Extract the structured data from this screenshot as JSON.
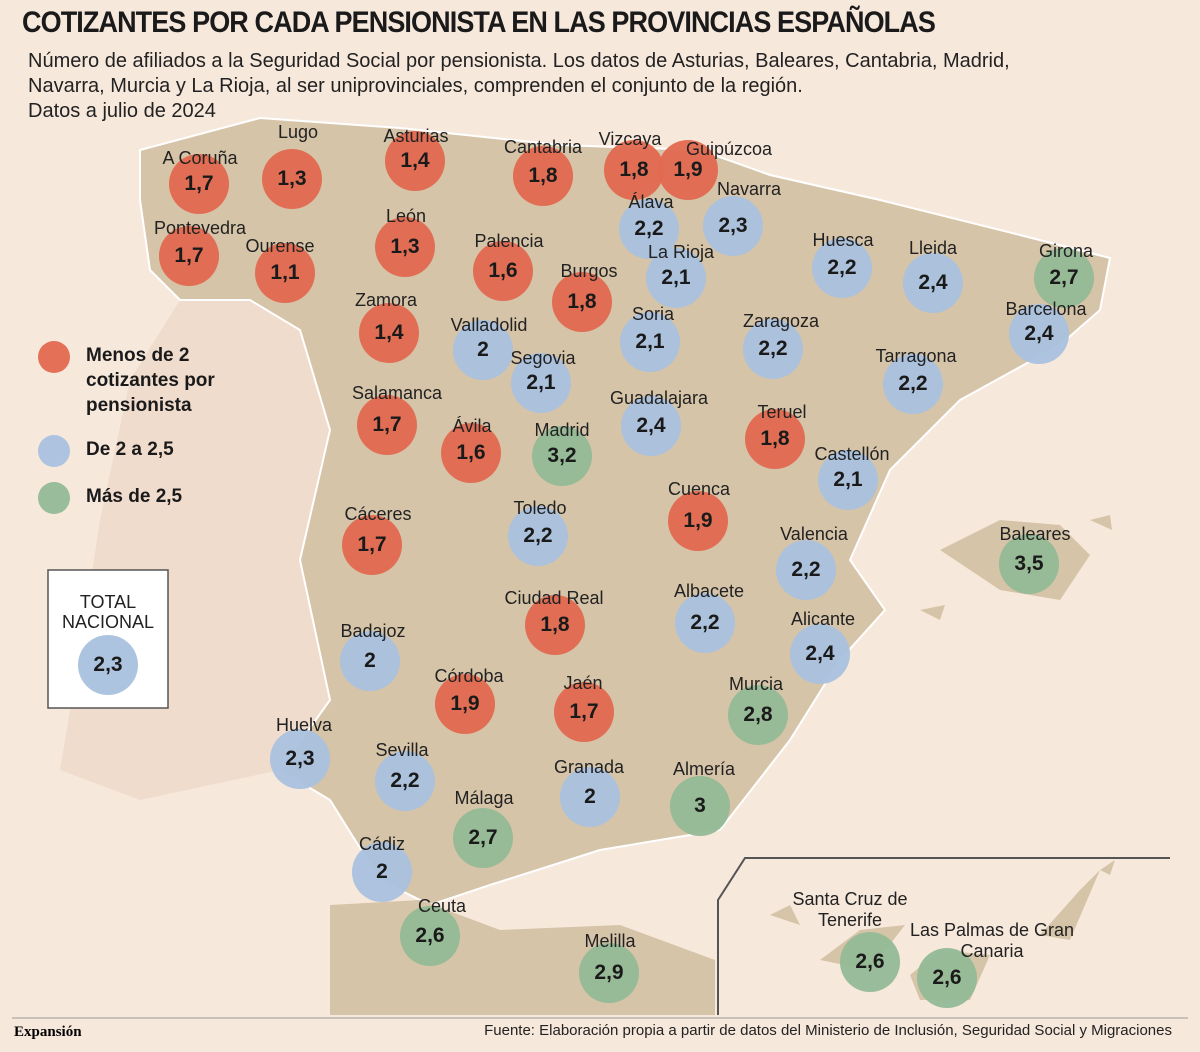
{
  "header": {
    "title": "COTIZANTES POR CADA PENSIONISTA EN LAS PROVINCIAS ESPAÑOLAS",
    "subtitle": [
      "Número de afiliados a la Seguridad Social por pensionista. Los datos de Asturias, Baleares, Cantabria, Madrid,",
      "Navarra, Murcia y La Rioja, al ser uniprovinciales, comprenden el conjunto de la región.",
      "Datos a julio de 2024"
    ]
  },
  "legend": [
    {
      "label": "Menos de 2 cotizantes por pensionista",
      "color": "#e2694f"
    },
    {
      "label": "De 2 a 2,5",
      "color": "#a9c1de"
    },
    {
      "label": "Más de 2,5",
      "color": "#93b996"
    }
  ],
  "total": {
    "label": "TOTAL NACIONAL",
    "value": 2.3,
    "value_label": "2,3",
    "color": "#a9c1de"
  },
  "provinces": [
    {
      "name": "A Coruña",
      "value": 1.7,
      "value_label": "1,7",
      "color": "#e2694f"
    },
    {
      "name": "Lugo",
      "value": 1.3,
      "value_label": "1,3",
      "color": "#e2694f"
    },
    {
      "name": "Asturias",
      "value": 1.4,
      "value_label": "1,4",
      "color": "#e2694f"
    },
    {
      "name": "Cantabria",
      "value": 1.8,
      "value_label": "1,8",
      "color": "#e2694f"
    },
    {
      "name": "Vizcaya",
      "value": 1.8,
      "value_label": "1,8",
      "color": "#e2694f"
    },
    {
      "name": "Guipúzcoa",
      "value": 1.9,
      "value_label": "1,9",
      "color": "#e2694f"
    },
    {
      "name": "Navarra",
      "value": 2.3,
      "value_label": "2,3",
      "color": "#a9c1de"
    },
    {
      "name": "Álava",
      "value": 2.2,
      "value_label": "2,2",
      "color": "#a9c1de"
    },
    {
      "name": "Pontevedra",
      "value": 1.7,
      "value_label": "1,7",
      "color": "#e2694f"
    },
    {
      "name": "Ourense",
      "value": 1.1,
      "value_label": "1,1",
      "color": "#e2694f"
    },
    {
      "name": "León",
      "value": 1.3,
      "value_label": "1,3",
      "color": "#e2694f"
    },
    {
      "name": "Palencia",
      "value": 1.6,
      "value_label": "1,6",
      "color": "#e2694f"
    },
    {
      "name": "La Rioja",
      "value": 2.1,
      "value_label": "2,1",
      "color": "#a9c1de"
    },
    {
      "name": "Burgos",
      "value": 1.8,
      "value_label": "1,8",
      "color": "#e2694f"
    },
    {
      "name": "Huesca",
      "value": 2.2,
      "value_label": "2,2",
      "color": "#a9c1de"
    },
    {
      "name": "Lleida",
      "value": 2.4,
      "value_label": "2,4",
      "color": "#a9c1de"
    },
    {
      "name": "Girona",
      "value": 2.7,
      "value_label": "2,7",
      "color": "#93b996"
    },
    {
      "name": "Zamora",
      "value": 1.4,
      "value_label": "1,4",
      "color": "#e2694f"
    },
    {
      "name": "Valladolid",
      "value": 2,
      "color": "#a9c1de"
    },
    {
      "name": "Soria",
      "value": 2.1,
      "value_label": "2,1",
      "color": "#a9c1de"
    },
    {
      "name": "Zaragoza",
      "value": 2.2,
      "value_label": "2,2",
      "color": "#a9c1de"
    },
    {
      "name": "Barcelona",
      "value": 2.4,
      "value_label": "2,4",
      "color": "#a9c1de"
    },
    {
      "name": "Segovia",
      "value": 2.1,
      "value_label": "2,1",
      "color": "#a9c1de"
    },
    {
      "name": "Tarragona",
      "value": 2.2,
      "value_label": "2,2",
      "color": "#a9c1de"
    },
    {
      "name": "Salamanca",
      "value": 1.7,
      "value_label": "1,7",
      "color": "#e2694f"
    },
    {
      "name": "Ávila",
      "value": 1.6,
      "value_label": "1,6",
      "color": "#e2694f"
    },
    {
      "name": "Madrid",
      "value": 3.2,
      "value_label": "3,2",
      "color": "#93b996"
    },
    {
      "name": "Guadalajara",
      "value": 2.4,
      "value_label": "2,4",
      "color": "#a9c1de"
    },
    {
      "name": "Teruel",
      "value": 1.8,
      "value_label": "1,8",
      "color": "#e2694f"
    },
    {
      "name": "Castellón",
      "value": 2.1,
      "value_label": "2,1",
      "color": "#a9c1de"
    },
    {
      "name": "Cuenca",
      "value": 1.9,
      "value_label": "1,9",
      "color": "#e2694f"
    },
    {
      "name": "Cáceres",
      "value": 1.7,
      "value_label": "1,7",
      "color": "#e2694f"
    },
    {
      "name": "Toledo",
      "value": 2.2,
      "value_label": "2,2",
      "color": "#a9c1de"
    },
    {
      "name": "Valencia",
      "value": 2.2,
      "value_label": "2,2",
      "color": "#a9c1de"
    },
    {
      "name": "Baleares",
      "value": 3.5,
      "value_label": "3,5",
      "color": "#93b996"
    },
    {
      "name": "Ciudad Real",
      "value": 1.8,
      "value_label": "1,8",
      "color": "#e2694f"
    },
    {
      "name": "Albacete",
      "value": 2.2,
      "value_label": "2,2",
      "color": "#a9c1de"
    },
    {
      "name": "Badajoz",
      "value": 2,
      "color": "#a9c1de"
    },
    {
      "name": "Alicante",
      "value": 2.4,
      "value_label": "2,4",
      "color": "#a9c1de"
    },
    {
      "name": "Córdoba",
      "value": 1.9,
      "value_label": "1,9",
      "color": "#e2694f"
    },
    {
      "name": "Jaén",
      "value": 1.7,
      "value_label": "1,7",
      "color": "#e2694f"
    },
    {
      "name": "Murcia",
      "value": 2.8,
      "value_label": "2,8",
      "color": "#93b996"
    },
    {
      "name": "Huelva",
      "value": 2.3,
      "value_label": "2,3",
      "color": "#a9c1de"
    },
    {
      "name": "Sevilla",
      "value": 2.2,
      "value_label": "2,2",
      "color": "#a9c1de"
    },
    {
      "name": "Granada",
      "value": 2,
      "color": "#a9c1de"
    },
    {
      "name": "Almería",
      "value": 3,
      "color": "#93b996"
    },
    {
      "name": "Málaga",
      "value": 2.7,
      "value_label": "2,7",
      "color": "#93b996"
    },
    {
      "name": "Cádiz",
      "value": 2,
      "color": "#a9c1de"
    },
    {
      "name": "Ceuta",
      "value": 2.6,
      "value_label": "2,6",
      "color": "#93b996"
    },
    {
      "name": "Melilla",
      "value": 2.9,
      "value_label": "2,9",
      "color": "#93b996"
    },
    {
      "name": "Santa Cruz de Tenerife",
      "value": 2.6,
      "value_label": "2,6",
      "color": "#93b996"
    },
    {
      "name": "Las Palmas de Gran Canaria",
      "value": 2.6,
      "value_label": "2,6",
      "color": "#93b996"
    }
  ],
  "footer": {
    "brand": "Expansión",
    "source": "Fuente: Elaboración propia a partir de datos del Ministerio de Inclusión, Seguridad Social y Migraciones"
  }
}
